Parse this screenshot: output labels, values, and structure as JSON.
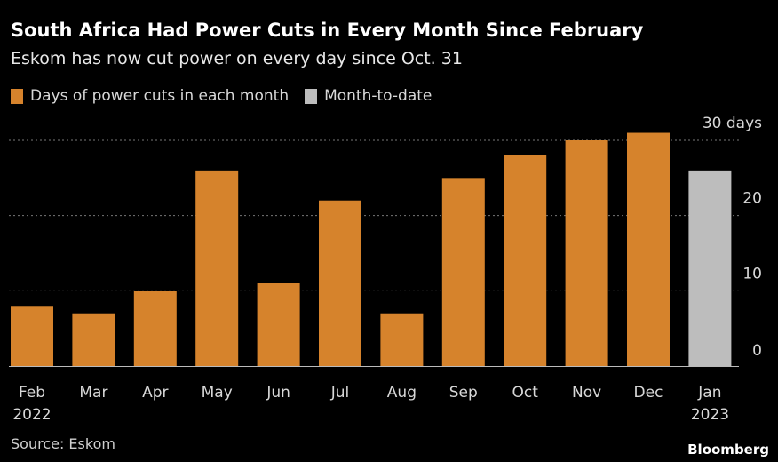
{
  "title": "South Africa Had Power Cuts in Every Month Since February",
  "subtitle": "Eskom has now cut power on every day since Oct. 31",
  "source": "Source: Eskom",
  "brand": "Bloomberg",
  "colors": {
    "complete": "#d6832c",
    "mtd": "#bdbdbd"
  },
  "chart_data": {
    "type": "bar",
    "categories": [
      "Feb",
      "Mar",
      "Apr",
      "May",
      "Jun",
      "Jul",
      "Aug",
      "Sep",
      "Oct",
      "Nov",
      "Dec",
      "Jan"
    ],
    "year_labels": {
      "Feb": "2022",
      "Jan": "2023"
    },
    "series": [
      {
        "name": "Days of power cuts in each month",
        "values": [
          8,
          7,
          10,
          26,
          11,
          22,
          7,
          25,
          28,
          30,
          31,
          null
        ]
      },
      {
        "name": "Month-to-date",
        "values": [
          null,
          null,
          null,
          null,
          null,
          null,
          null,
          null,
          null,
          null,
          null,
          26
        ]
      }
    ],
    "ylim": [
      0,
      30
    ],
    "yticks": [
      0,
      10,
      20,
      30
    ],
    "ytick_labels": [
      "0",
      "10",
      "20",
      "30 days"
    ],
    "grid": true,
    "legend_position": "top-left"
  }
}
